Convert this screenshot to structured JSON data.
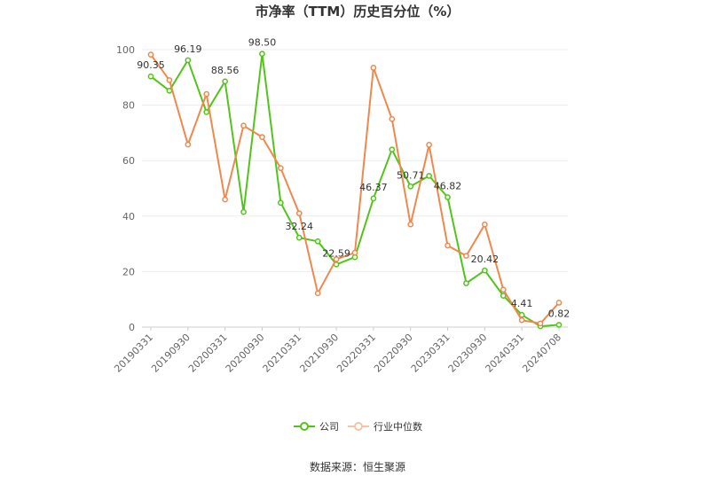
{
  "chart_data": {
    "type": "line",
    "title": "市净率（TTM）历史百分位（%）",
    "source": "数据来源：恒生聚源",
    "ylim": [
      0,
      100
    ],
    "yticks": [
      0,
      20,
      40,
      60,
      80,
      100
    ],
    "grid": true,
    "legend_position": "bottom",
    "x": [
      "20190331",
      "20190630",
      "20190930",
      "20191231",
      "20200331",
      "20200630",
      "20200930",
      "20201231",
      "20210331",
      "20210630",
      "20210930",
      "20211231",
      "20220331",
      "20220630",
      "20220930",
      "20221231",
      "20230331",
      "20230630",
      "20230930",
      "20231231",
      "20240331",
      "20240630",
      "20240708"
    ],
    "xtick_labels": [
      "20190331",
      "20190930",
      "20200331",
      "20200930",
      "20210331",
      "20210930",
      "20220331",
      "20220930",
      "20230331",
      "20230930",
      "20240331",
      "20240708"
    ],
    "series": [
      {
        "name": "公司",
        "color": "#52c41a",
        "values": [
          90.35,
          85.2,
          96.19,
          77.5,
          88.56,
          41.5,
          98.5,
          44.8,
          32.24,
          30.9,
          22.59,
          25.2,
          46.37,
          64.0,
          50.71,
          54.5,
          46.82,
          15.8,
          20.42,
          11.3,
          4.41,
          0.3,
          0.82
        ]
      },
      {
        "name": "行业中位数",
        "color": "#f0884d",
        "values": [
          98.2,
          89.0,
          65.8,
          84.0,
          46.0,
          72.6,
          68.5,
          57.3,
          41.0,
          12.2,
          24.5,
          26.8,
          93.5,
          75.0,
          37.0,
          65.7,
          29.4,
          25.7,
          37.0,
          13.5,
          2.5,
          1.3,
          8.8
        ]
      }
    ],
    "data_labels": [
      {
        "series": 0,
        "index": 0,
        "text": "90.35"
      },
      {
        "series": 0,
        "index": 2,
        "text": "96.19"
      },
      {
        "series": 0,
        "index": 4,
        "text": "88.56"
      },
      {
        "series": 0,
        "index": 6,
        "text": "98.50"
      },
      {
        "series": 0,
        "index": 8,
        "text": "32.24"
      },
      {
        "series": 0,
        "index": 10,
        "text": "22.59"
      },
      {
        "series": 0,
        "index": 12,
        "text": "46.37"
      },
      {
        "series": 0,
        "index": 14,
        "text": "50.71"
      },
      {
        "series": 0,
        "index": 16,
        "text": "46.82"
      },
      {
        "series": 0,
        "index": 18,
        "text": "20.42"
      },
      {
        "series": 0,
        "index": 20,
        "text": "4.41"
      },
      {
        "series": 0,
        "index": 22,
        "text": "0.82"
      }
    ]
  }
}
